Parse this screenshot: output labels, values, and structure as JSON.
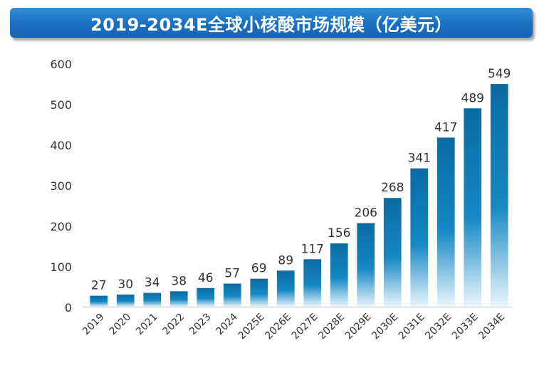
{
  "chart_data": {
    "type": "bar",
    "title": "2019-2034E全球小核酸市场规模（亿美元）",
    "xlabel": "",
    "ylabel": "",
    "ylim": [
      0,
      600
    ],
    "yticks": [
      0,
      100,
      200,
      300,
      400,
      500,
      600
    ],
    "grid": false,
    "categories": [
      "2019",
      "2020",
      "2021",
      "2022",
      "2023",
      "2024",
      "2025E",
      "2026E",
      "2027E",
      "2028E",
      "2029E",
      "2030E",
      "2031E",
      "2032E",
      "2033E",
      "2034E"
    ],
    "values": [
      27,
      30,
      34,
      38,
      46,
      57,
      69,
      89,
      117,
      156,
      206,
      268,
      341,
      417,
      489,
      549
    ],
    "bar_color": "#0f6fa8"
  }
}
